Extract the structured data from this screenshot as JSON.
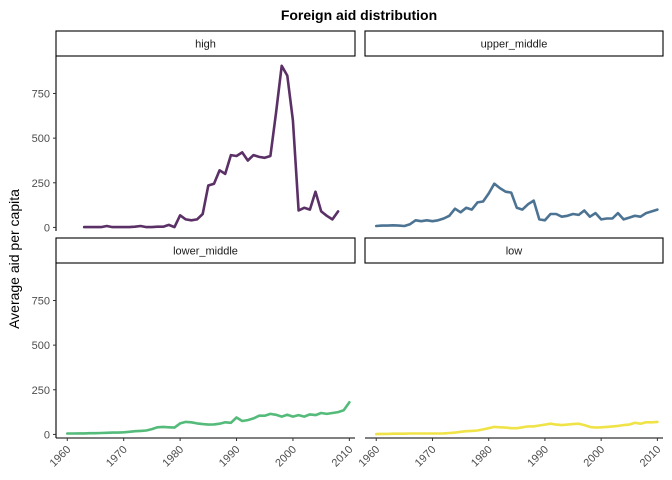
{
  "chart_data": {
    "type": "line",
    "title": "Foreign aid distribution",
    "xlabel": "",
    "ylabel": "Average aid per capita",
    "xlim": [
      1958,
      2011
    ],
    "ylim": [
      -20,
      960
    ],
    "x_ticks": [
      1960,
      1970,
      1980,
      1990,
      2000,
      2010
    ],
    "y_ticks": [
      0,
      250,
      500,
      750
    ],
    "grid": false,
    "panels": [
      {
        "name": "high",
        "color": "#5b3066",
        "x": [
          1963,
          1964,
          1965,
          1966,
          1967,
          1968,
          1969,
          1970,
          1971,
          1972,
          1973,
          1974,
          1975,
          1976,
          1977,
          1978,
          1979,
          1980,
          1981,
          1982,
          1983,
          1984,
          1985,
          1986,
          1987,
          1988,
          1989,
          1990,
          1991,
          1992,
          1993,
          1994,
          1995,
          1996,
          1997,
          1998,
          1999,
          2000,
          2001,
          2002,
          2003,
          2004,
          2005,
          2006,
          2007,
          2008
        ],
        "y": [
          2,
          2,
          2,
          2,
          8,
          2,
          2,
          2,
          2,
          4,
          8,
          2,
          2,
          4,
          4,
          14,
          2,
          68,
          45,
          40,
          45,
          75,
          235,
          245,
          320,
          300,
          405,
          400,
          420,
          375,
          405,
          395,
          390,
          400,
          640,
          905,
          850,
          600,
          95,
          110,
          100,
          200,
          90,
          65,
          45,
          90
        ]
      },
      {
        "name": "upper_middle",
        "color": "#4d7393",
        "x": [
          1960,
          1961,
          1962,
          1963,
          1964,
          1965,
          1966,
          1967,
          1968,
          1969,
          1970,
          1971,
          1972,
          1973,
          1974,
          1975,
          1976,
          1977,
          1978,
          1979,
          1980,
          1981,
          1982,
          1983,
          1984,
          1985,
          1986,
          1987,
          1988,
          1989,
          1990,
          1991,
          1992,
          1993,
          1994,
          1995,
          1996,
          1997,
          1998,
          1999,
          2000,
          2001,
          2002,
          2003,
          2004,
          2005,
          2006,
          2007,
          2008,
          2009,
          2010
        ],
        "y": [
          8,
          10,
          10,
          12,
          10,
          8,
          18,
          40,
          35,
          40,
          35,
          40,
          50,
          65,
          105,
          85,
          110,
          100,
          140,
          145,
          190,
          245,
          220,
          200,
          195,
          110,
          100,
          130,
          150,
          45,
          40,
          75,
          75,
          60,
          65,
          75,
          70,
          95,
          60,
          80,
          45,
          50,
          50,
          80,
          45,
          55,
          65,
          60,
          80,
          90,
          100
        ]
      },
      {
        "name": "lower_middle",
        "color": "#55bb7a",
        "x": [
          1960,
          1961,
          1962,
          1963,
          1964,
          1965,
          1966,
          1967,
          1968,
          1969,
          1970,
          1971,
          1972,
          1973,
          1974,
          1975,
          1976,
          1977,
          1978,
          1979,
          1980,
          1981,
          1982,
          1983,
          1984,
          1985,
          1986,
          1987,
          1988,
          1989,
          1990,
          1991,
          1992,
          1993,
          1994,
          1995,
          1996,
          1997,
          1998,
          1999,
          2000,
          2001,
          2002,
          2003,
          2004,
          2005,
          2006,
          2007,
          2008,
          2009,
          2010
        ],
        "y": [
          5,
          5,
          6,
          6,
          7,
          7,
          8,
          9,
          10,
          10,
          12,
          15,
          18,
          20,
          22,
          30,
          40,
          42,
          40,
          38,
          62,
          70,
          68,
          62,
          58,
          55,
          56,
          60,
          68,
          65,
          95,
          75,
          80,
          90,
          105,
          105,
          115,
          110,
          100,
          110,
          100,
          108,
          100,
          112,
          108,
          120,
          115,
          120,
          125,
          135,
          180
        ]
      },
      {
        "name": "low",
        "color": "#f0e348",
        "x": [
          1960,
          1961,
          1962,
          1963,
          1964,
          1965,
          1966,
          1967,
          1968,
          1969,
          1970,
          1971,
          1972,
          1973,
          1974,
          1975,
          1976,
          1977,
          1978,
          1979,
          1980,
          1981,
          1982,
          1983,
          1984,
          1985,
          1986,
          1987,
          1988,
          1989,
          1990,
          1991,
          1992,
          1993,
          1994,
          1995,
          1996,
          1997,
          1998,
          1999,
          2000,
          2001,
          2002,
          2003,
          2004,
          2005,
          2006,
          2007,
          2008,
          2009,
          2010
        ],
        "y": [
          2,
          3,
          3,
          4,
          4,
          4,
          5,
          5,
          5,
          5,
          5,
          5,
          6,
          8,
          10,
          15,
          18,
          20,
          22,
          28,
          35,
          42,
          40,
          38,
          35,
          35,
          40,
          45,
          45,
          50,
          55,
          60,
          55,
          52,
          55,
          58,
          60,
          52,
          42,
          38,
          40,
          42,
          45,
          48,
          52,
          55,
          65,
          60,
          68,
          68,
          70
        ]
      }
    ]
  }
}
